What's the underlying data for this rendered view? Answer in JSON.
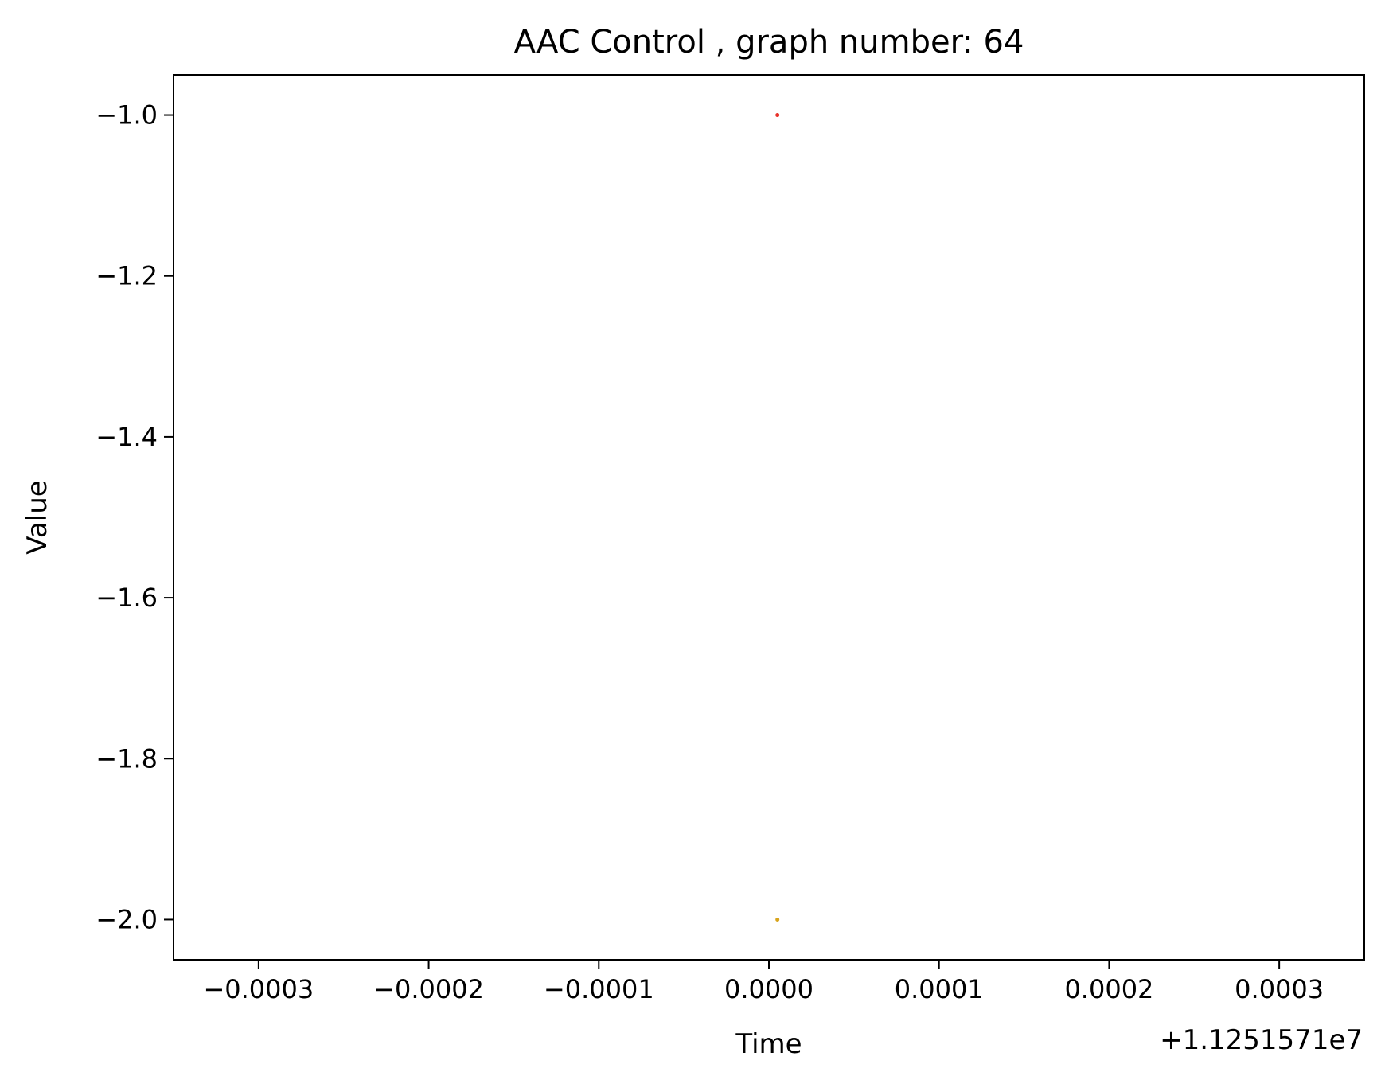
{
  "chart_data": {
    "type": "scatter",
    "title": "AAC Control , graph number: 64",
    "xlabel": "Time",
    "ylabel": "Value",
    "x_offset_label": "+1.1251571e7",
    "xlim": [
      -0.00035,
      0.00035
    ],
    "ylim": [
      -2.05,
      -0.95
    ],
    "x_ticks": [
      -0.0003,
      -0.0002,
      -0.0001,
      0.0,
      0.0001,
      0.0002,
      0.0003
    ],
    "x_tick_labels": [
      "−0.0003",
      "−0.0002",
      "−0.0001",
      "0.0000",
      "0.0001",
      "0.0002",
      "0.0003"
    ],
    "y_ticks": [
      -1.0,
      -1.2,
      -1.4,
      -1.6,
      -1.8,
      -2.0
    ],
    "y_tick_labels": [
      "−1.0",
      "−1.2",
      "−1.4",
      "−1.6",
      "−1.8",
      "−2.0"
    ],
    "grid": false,
    "series": [
      {
        "color": "#e8322a",
        "points": [
          {
            "x": 5e-06,
            "y": -1.0
          }
        ]
      },
      {
        "color": "#d8a41c",
        "points": [
          {
            "x": 5e-06,
            "y": -2.0
          }
        ]
      }
    ]
  }
}
